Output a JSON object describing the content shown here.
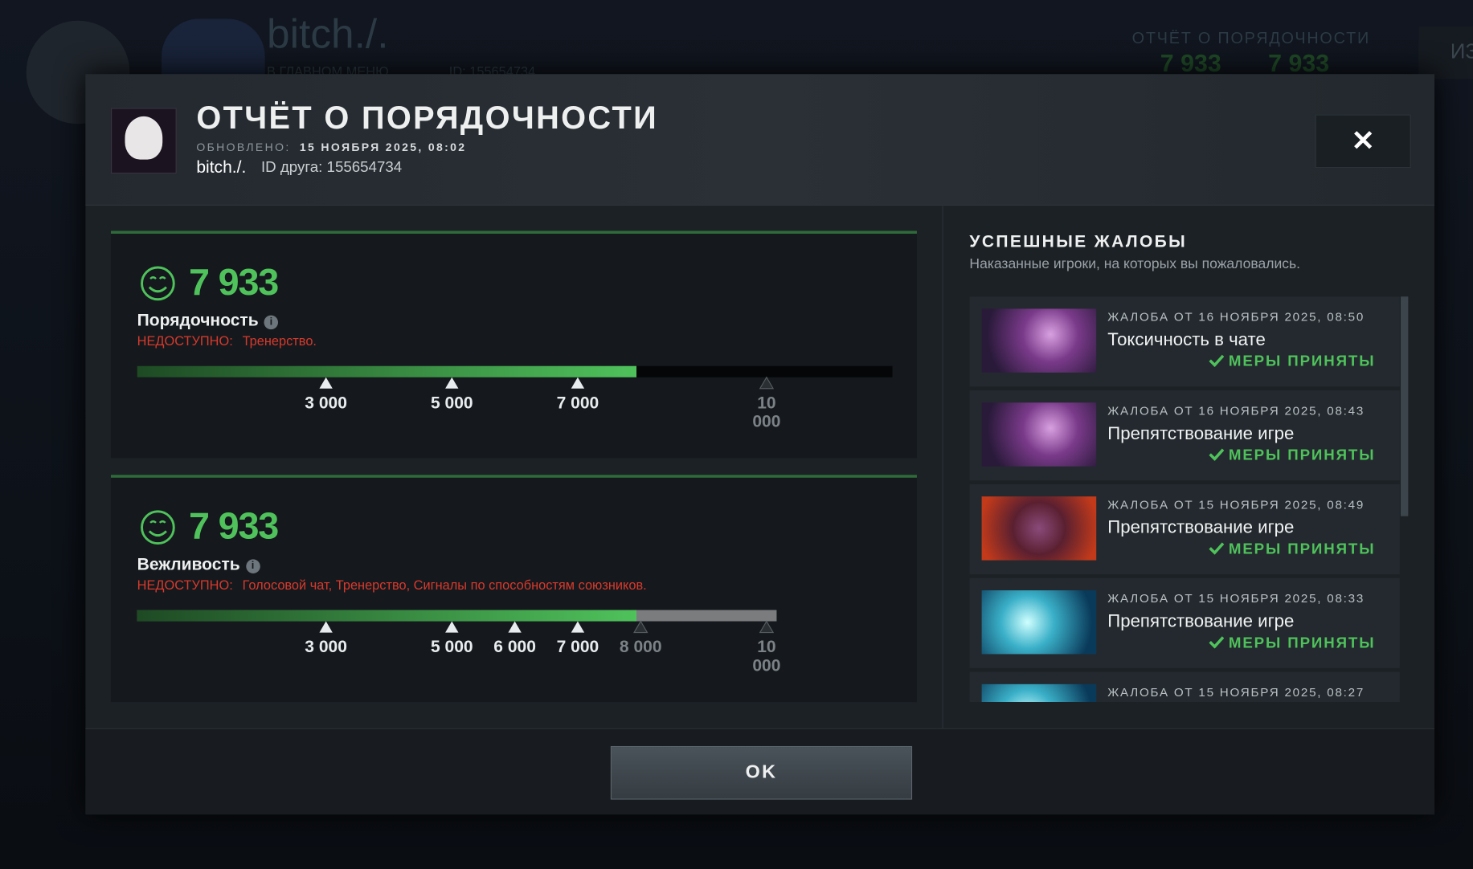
{
  "background": {
    "player_name": "bitch./.",
    "status": "В ГЛАВНОМ МЕНЮ",
    "id": "ID: 155654734",
    "report_title": "ОТЧЁТ О ПОРЯДОЧНОСТИ",
    "score_1": "7 933",
    "score_2": "7 933",
    "side_tab": "ИЗ"
  },
  "header": {
    "title": "ОТЧЁТ О ПОРЯДОЧНОСТИ",
    "updated_label": "ОБНОВЛЕНО:",
    "updated_value": "15 НОЯБРЯ 2025, 08:02",
    "player_name": "bitch./.",
    "friend_id": "ID друга: 155654734",
    "close": "✕"
  },
  "cards": [
    {
      "score": {
        "value": 7933,
        "label": "7 933"
      },
      "label": "Порядочность",
      "unavailable_label": "НЕДОСТУПНО:",
      "unavailable_text": "Тренерство.",
      "xlim": [
        0,
        12000
      ],
      "fill_color": "#4fc25b",
      "track_color": "#050607",
      "ticks": [
        {
          "value": 3000,
          "label": "3 000"
        },
        {
          "value": 5000,
          "label": "5 000"
        },
        {
          "value": 7000,
          "label": "7 000"
        },
        {
          "value": 10000,
          "label": "10 000"
        }
      ]
    },
    {
      "score": {
        "value": 7933,
        "label": "7 933"
      },
      "label": "Вежливость",
      "unavailable_label": "НЕДОСТУПНО:",
      "unavailable_text": "Голосовой чат, Тренерство, Сигналы по способностям союзников.",
      "xlim": [
        0,
        10160
      ],
      "fill_color": "#4fc25b",
      "track_color": "#7a7c7e",
      "ticks": [
        {
          "value": 3000,
          "label": "3 000"
        },
        {
          "value": 5000,
          "label": "5 000"
        },
        {
          "value": 6000,
          "label": "6 000"
        },
        {
          "value": 7000,
          "label": "7 000"
        },
        {
          "value": 8000,
          "label": "8 000"
        },
        {
          "value": 10000,
          "label": "10 000"
        }
      ]
    }
  ],
  "reports": {
    "title": "УСПЕШНЫЕ ЖАЛОБЫ",
    "subtitle": "Наказанные игроки, на которых вы пожаловались.",
    "items": [
      {
        "header": "ЖАЛОБА ОТ 16 НОЯБРЯ 2025, 08:50",
        "reason": "Токсичность в чате",
        "status": "МЕРЫ ПРИНЯТЫ"
      },
      {
        "header": "ЖАЛОБА ОТ 16 НОЯБРЯ 2025, 08:43",
        "reason": "Препятствование игре",
        "status": "МЕРЫ ПРИНЯТЫ"
      },
      {
        "header": "ЖАЛОБА ОТ 15 НОЯБРЯ 2025, 08:49",
        "reason": "Препятствование игре",
        "status": "МЕРЫ ПРИНЯТЫ"
      },
      {
        "header": "ЖАЛОБА ОТ 15 НОЯБРЯ 2025, 08:33",
        "reason": "Препятствование игре",
        "status": "МЕРЫ ПРИНЯТЫ"
      },
      {
        "header": "ЖАЛОБА ОТ 15 НОЯБРЯ 2025, 08:27"
      }
    ]
  },
  "footer": {
    "ok": "OK"
  }
}
